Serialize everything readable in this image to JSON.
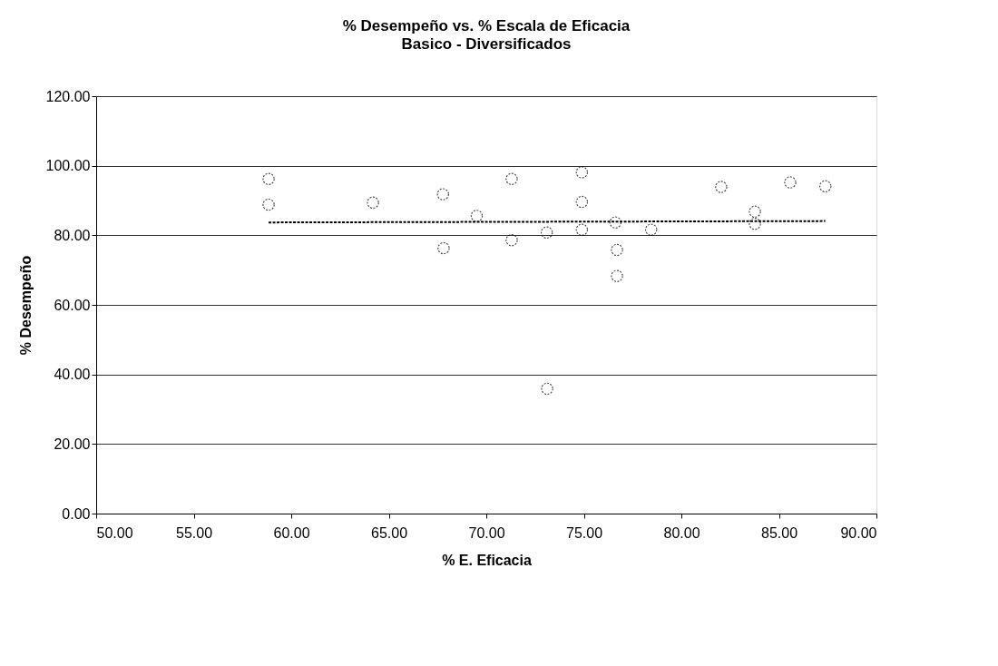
{
  "chart_data": {
    "type": "scatter",
    "title": "% Desempeño vs. % Escala de Eficacia",
    "subtitle": "Basico - Diversificados",
    "xlabel": "% E. Eficacia",
    "ylabel": "% Desempeño",
    "series": [
      {
        "color": "#000000",
        "marker": "circle",
        "x": [
          58.84,
          58.84,
          64.19,
          67.78,
          67.81,
          69.51,
          71.3,
          71.3,
          73.1,
          73.12,
          74.9,
          74.9,
          74.9,
          76.62,
          76.7,
          76.7,
          78.45,
          82.04,
          83.77,
          83.77,
          85.58,
          87.38
        ],
        "values": [
          96.2,
          88.8,
          89.4,
          91.8,
          76.3,
          85.6,
          96.2,
          78.6,
          80.8,
          35.9,
          98.1,
          89.6,
          81.6,
          83.7,
          75.8,
          68.3,
          81.6,
          93.9,
          86.8,
          83.3,
          95.2,
          94.1
        ]
      },
      {
        "type": "line",
        "line_style": "dashed",
        "color": "#000000",
        "x": [
          58.84,
          87.38
        ],
        "values": [
          83.7,
          84.1
        ]
      }
    ],
    "xlim": [
      50,
      90
    ],
    "xticks": [
      {
        "value": 50,
        "label": "50.00"
      },
      {
        "value": 55,
        "label": "55.00"
      },
      {
        "value": 60,
        "label": "60.00"
      },
      {
        "value": 65,
        "label": "65.00"
      },
      {
        "value": 70,
        "label": "70.00"
      },
      {
        "value": 75,
        "label": "75.00"
      },
      {
        "value": 80,
        "label": "80.00"
      },
      {
        "value": 85,
        "label": "85.00"
      },
      {
        "value": 90,
        "label": "90.00"
      }
    ],
    "ylim": [
      0,
      120
    ],
    "yticks": [
      {
        "value": 0,
        "label": "0.00"
      },
      {
        "value": 20,
        "label": "20.00"
      },
      {
        "value": 40,
        "label": "40.00"
      },
      {
        "value": 60,
        "label": "60.00"
      },
      {
        "value": 80,
        "label": "80.00"
      },
      {
        "value": 100,
        "label": "100.00"
      },
      {
        "value": 120,
        "label": "120.00"
      }
    ],
    "grid": "y"
  }
}
